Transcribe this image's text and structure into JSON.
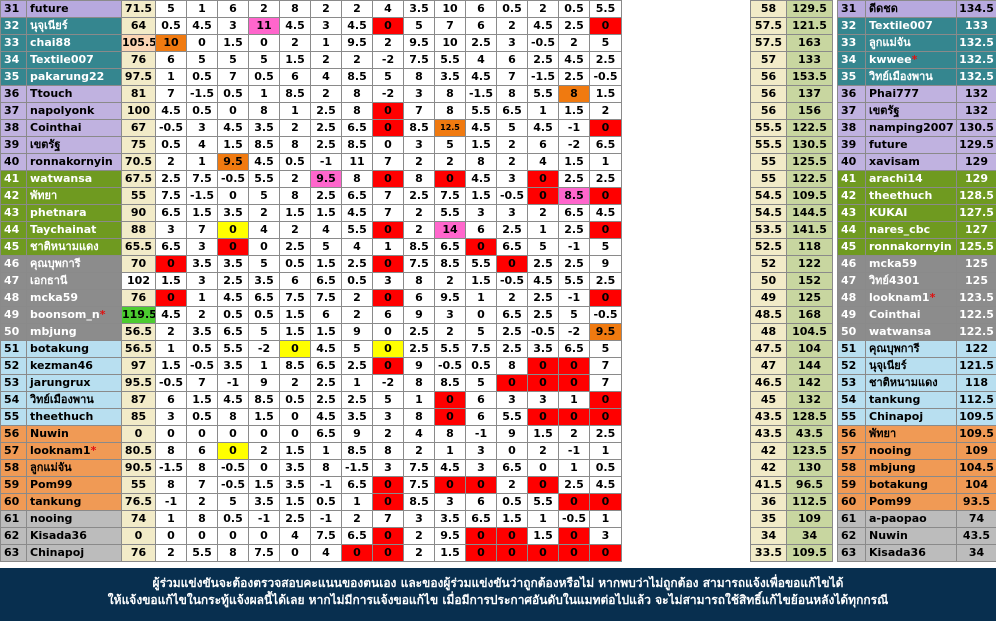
{
  "colors": {
    "purple": "#b7a9de",
    "teal": "#35868f",
    "lilac": "#c0b2e0",
    "green": "#6f9a20",
    "gray": "#8c8c8c",
    "lightblue": "#b8dff0",
    "orange": "#f09a55",
    "silver": "#bcbcbc",
    "cell_red": "#ff0000",
    "cell_yellow": "#ffff00",
    "cell_pink": "#ff66cc",
    "cell_orange": "#f07a10",
    "cell_green": "#4ccc30",
    "mid_bg": "#f2ebc8",
    "mid_pts": "#c8d6a0",
    "footer_bg": "#082f4f"
  },
  "rows": [
    {
      "rank": "31",
      "name": "future",
      "total": "71.5",
      "weeks": [
        "5",
        "1",
        "6",
        "2",
        "8",
        "2",
        "2",
        "4",
        "3.5",
        "10",
        "6",
        "0.5",
        "2",
        "0.5",
        "5.5"
      ],
      "color": "purple",
      "hl": {}
    },
    {
      "rank": "32",
      "name": "นุจุเนียร์",
      "total": "64",
      "weeks": [
        "0.5",
        "4.5",
        "3",
        "11",
        "4.5",
        "3",
        "4.5",
        "0",
        "5",
        "7",
        "6",
        "2",
        "4.5",
        "2.5",
        "0"
      ],
      "color": "teal",
      "hl": {
        "3": "cell_pink",
        "7": "cell_red",
        "14": "cell_red"
      }
    },
    {
      "rank": "33",
      "name": "chai88",
      "total": "105.5",
      "weeks": [
        "10",
        "0",
        "1.5",
        "0",
        "2",
        "1",
        "9.5",
        "2",
        "9.5",
        "10",
        "2.5",
        "3",
        "-0.5",
        "2",
        "5"
      ],
      "color": "teal",
      "hl": {
        "0": "cell_orange"
      },
      "tot_hl": "#fcd5b4"
    },
    {
      "rank": "34",
      "name": "Textile007",
      "total": "76",
      "weeks": [
        "6",
        "5",
        "5",
        "5",
        "1.5",
        "2",
        "2",
        "-2",
        "7.5",
        "5.5",
        "4",
        "6",
        "2.5",
        "4.5",
        "2.5"
      ],
      "color": "teal",
      "hl": {}
    },
    {
      "rank": "35",
      "name": "pakarung22",
      "total": "97.5",
      "weeks": [
        "1",
        "0.5",
        "7",
        "0.5",
        "6",
        "4",
        "8.5",
        "5",
        "8",
        "3.5",
        "4.5",
        "7",
        "-1.5",
        "2.5",
        "-0.5"
      ],
      "color": "teal",
      "hl": {}
    },
    {
      "rank": "36",
      "name": "Ttouch",
      "total": "81",
      "weeks": [
        "7",
        "-1.5",
        "0.5",
        "1",
        "8.5",
        "2",
        "8",
        "-2",
        "3",
        "8",
        "-1.5",
        "8",
        "5.5",
        "8",
        "1.5"
      ],
      "color": "lilac",
      "hl": {
        "13": "cell_orange"
      }
    },
    {
      "rank": "37",
      "name": "napolyonk",
      "total": "100",
      "weeks": [
        "4.5",
        "0.5",
        "0",
        "8",
        "1",
        "2.5",
        "8",
        "0",
        "7",
        "8",
        "5.5",
        "6.5",
        "1",
        "1.5",
        "2"
      ],
      "color": "lilac",
      "hl": {
        "7": "cell_red"
      }
    },
    {
      "rank": "38",
      "name": "Cointhai",
      "total": "67",
      "weeks": [
        "-0.5",
        "3",
        "4.5",
        "3.5",
        "2",
        "2.5",
        "6.5",
        "0",
        "8.5",
        "12.5",
        "4.5",
        "5",
        "4.5",
        "-1",
        "0"
      ],
      "color": "lilac",
      "hl": {
        "7": "cell_red",
        "9": "cell_orange",
        "14": "cell_red"
      }
    },
    {
      "rank": "39",
      "name": "เขตรัฐ",
      "total": "75",
      "weeks": [
        "0.5",
        "4",
        "1.5",
        "8.5",
        "8",
        "2.5",
        "8.5",
        "0",
        "3",
        "5",
        "1.5",
        "2",
        "6",
        "-2",
        "6.5"
      ],
      "color": "lilac",
      "hl": {}
    },
    {
      "rank": "40",
      "name": "ronnakornyin",
      "total": "70.5",
      "weeks": [
        "2",
        "1",
        "9.5",
        "4.5",
        "0.5",
        "-1",
        "11",
        "7",
        "2",
        "2",
        "8",
        "2",
        "4",
        "1.5",
        "1"
      ],
      "color": "lilac",
      "hl": {
        "2": "cell_orange"
      }
    },
    {
      "rank": "41",
      "name": "watwansa",
      "total": "67.5",
      "weeks": [
        "2.5",
        "7.5",
        "-0.5",
        "5.5",
        "2",
        "9.5",
        "8",
        "0",
        "8",
        "0",
        "4.5",
        "3",
        "0",
        "2.5",
        "2.5"
      ],
      "color": "green",
      "hl": {
        "5": "cell_pink",
        "7": "cell_red",
        "9": "cell_red",
        "12": "cell_red"
      }
    },
    {
      "rank": "42",
      "name": "พัทยา",
      "total": "55",
      "weeks": [
        "7.5",
        "-1.5",
        "0",
        "5",
        "8",
        "2.5",
        "6.5",
        "7",
        "2.5",
        "7.5",
        "1.5",
        "-0.5",
        "0",
        "8.5",
        "0"
      ],
      "color": "green",
      "hl": {
        "12": "cell_red",
        "13": "cell_pink",
        "14": "cell_red"
      }
    },
    {
      "rank": "43",
      "name": "phetnara",
      "total": "90",
      "weeks": [
        "6.5",
        "1.5",
        "3.5",
        "2",
        "1.5",
        "1.5",
        "4.5",
        "7",
        "2",
        "5.5",
        "3",
        "3",
        "2",
        "6.5",
        "4.5"
      ],
      "color": "green",
      "hl": {}
    },
    {
      "rank": "44",
      "name": "Taychainat",
      "total": "88",
      "weeks": [
        "3",
        "7",
        "0",
        "4",
        "2",
        "4",
        "5.5",
        "0",
        "2",
        "14",
        "6",
        "2.5",
        "1",
        "2.5",
        "0"
      ],
      "color": "green",
      "hl": {
        "2": "cell_yellow",
        "7": "cell_red",
        "9": "cell_pink",
        "14": "cell_red"
      }
    },
    {
      "rank": "45",
      "name": "ชาติหนามแดง",
      "total": "65.5",
      "weeks": [
        "6.5",
        "3",
        "0",
        "0",
        "2.5",
        "5",
        "4",
        "1",
        "8.5",
        "6.5",
        "0",
        "6.5",
        "5",
        "-1",
        "5"
      ],
      "color": "green",
      "hl": {
        "2": "cell_red",
        "10": "cell_red"
      }
    },
    {
      "rank": "46",
      "name": "คุณบุพการี",
      "total": "70",
      "weeks": [
        "0",
        "3.5",
        "3.5",
        "5",
        "0.5",
        "1.5",
        "2.5",
        "0",
        "7.5",
        "8.5",
        "5.5",
        "0",
        "2.5",
        "2.5",
        "9"
      ],
      "color": "gray",
      "hl": {
        "0": "cell_red",
        "7": "cell_red",
        "11": "cell_red"
      }
    },
    {
      "rank": "47",
      "name": "เอกธานี",
      "total": "102",
      "weeks": [
        "1.5",
        "3",
        "2.5",
        "3.5",
        "6",
        "6.5",
        "0.5",
        "3",
        "8",
        "2",
        "1.5",
        "-0.5",
        "4.5",
        "5.5",
        "2.5"
      ],
      "color": "gray",
      "hl": {},
      "tot_hl": "#ffffff"
    },
    {
      "rank": "48",
      "name": "mcka59",
      "total": "76",
      "weeks": [
        "0",
        "1",
        "4.5",
        "6.5",
        "7.5",
        "7.5",
        "2",
        "0",
        "6",
        "9.5",
        "1",
        "2",
        "2.5",
        "-1",
        "0"
      ],
      "color": "gray",
      "hl": {
        "0": "cell_red",
        "7": "cell_red",
        "14": "cell_red"
      }
    },
    {
      "rank": "49",
      "name": "boonsom_n",
      "ast": true,
      "total": "119.5",
      "weeks": [
        "4.5",
        "2",
        "0.5",
        "0.5",
        "1.5",
        "6",
        "2",
        "6",
        "9",
        "3",
        "0",
        "6.5",
        "2.5",
        "5",
        "-0.5"
      ],
      "color": "gray",
      "hl": {},
      "tot_hl": "#4ccc30"
    },
    {
      "rank": "50",
      "name": "mbjung",
      "total": "56.5",
      "weeks": [
        "2",
        "3.5",
        "6.5",
        "5",
        "1.5",
        "1.5",
        "9",
        "0",
        "2.5",
        "2",
        "5",
        "2.5",
        "-0.5",
        "-2",
        "9.5"
      ],
      "color": "gray",
      "hl": {
        "14": "cell_orange"
      }
    },
    {
      "rank": "51",
      "name": "botakung",
      "total": "56.5",
      "weeks": [
        "1",
        "0.5",
        "5.5",
        "-2",
        "0",
        "4.5",
        "5",
        "0",
        "2.5",
        "5.5",
        "7.5",
        "2.5",
        "3.5",
        "6.5",
        "5"
      ],
      "color": "lightblue",
      "hl": {
        "4": "cell_yellow",
        "7": "cell_yellow"
      }
    },
    {
      "rank": "52",
      "name": "kezman46",
      "total": "97",
      "weeks": [
        "1.5",
        "-0.5",
        "3.5",
        "1",
        "8.5",
        "6.5",
        "2.5",
        "0",
        "9",
        "-0.5",
        "0.5",
        "8",
        "0",
        "0",
        "7"
      ],
      "color": "lightblue",
      "hl": {
        "7": "cell_red",
        "12": "cell_red",
        "13": "cell_red"
      }
    },
    {
      "rank": "53",
      "name": "jarungrux",
      "total": "95.5",
      "weeks": [
        "-0.5",
        "7",
        "-1",
        "9",
        "2",
        "2.5",
        "1",
        "-2",
        "8",
        "8.5",
        "5",
        "0",
        "0",
        "0",
        "7"
      ],
      "color": "lightblue",
      "hl": {
        "11": "cell_red",
        "12": "cell_red",
        "13": "cell_red"
      }
    },
    {
      "rank": "54",
      "name": "วิทย์เมืองพาน",
      "total": "87",
      "weeks": [
        "6",
        "1.5",
        "4.5",
        "8.5",
        "0.5",
        "2.5",
        "2.5",
        "5",
        "1",
        "0",
        "6",
        "3",
        "3",
        "1",
        "0"
      ],
      "color": "lightblue",
      "hl": {
        "9": "cell_red",
        "14": "cell_red"
      }
    },
    {
      "rank": "55",
      "name": "theethuch",
      "total": "85",
      "weeks": [
        "3",
        "0.5",
        "8",
        "1.5",
        "0",
        "4.5",
        "3.5",
        "3",
        "8",
        "0",
        "6",
        "5.5",
        "0",
        "0",
        "0"
      ],
      "color": "lightblue",
      "hl": {
        "9": "cell_red",
        "12": "cell_red",
        "13": "cell_red",
        "14": "cell_red"
      }
    },
    {
      "rank": "56",
      "name": "Nuwin",
      "total": "0",
      "weeks": [
        "0",
        "0",
        "0",
        "0",
        "0",
        "6.5",
        "9",
        "2",
        "4",
        "8",
        "-1",
        "9",
        "1.5",
        "2",
        "2.5"
      ],
      "color": "orange",
      "hl": {}
    },
    {
      "rank": "57",
      "name": "looknam1",
      "ast": true,
      "total": "80.5",
      "weeks": [
        "8",
        "6",
        "0",
        "2",
        "1.5",
        "1",
        "8.5",
        "8",
        "2",
        "1",
        "3",
        "0",
        "2",
        "-1",
        "1"
      ],
      "color": "orange",
      "hl": {
        "2": "cell_yellow"
      }
    },
    {
      "rank": "58",
      "name": "ลูกแม่จัน",
      "total": "90.5",
      "weeks": [
        "-1.5",
        "8",
        "-0.5",
        "0",
        "3.5",
        "8",
        "-1.5",
        "3",
        "7.5",
        "4.5",
        "3",
        "6.5",
        "0",
        "1",
        "0.5"
      ],
      "color": "orange",
      "hl": {}
    },
    {
      "rank": "59",
      "name": "Pom99",
      "total": "55",
      "weeks": [
        "8",
        "7",
        "-0.5",
        "1.5",
        "3.5",
        "-1",
        "6.5",
        "0",
        "7.5",
        "0",
        "0",
        "2",
        "0",
        "2.5",
        "4.5"
      ],
      "color": "orange",
      "hl": {
        "7": "cell_red",
        "9": "cell_red",
        "10": "cell_red",
        "12": "cell_red"
      }
    },
    {
      "rank": "60",
      "name": "tankung",
      "total": "76.5",
      "weeks": [
        "-1",
        "2",
        "5",
        "3.5",
        "1.5",
        "0.5",
        "1",
        "0",
        "8.5",
        "3",
        "6",
        "0.5",
        "5.5",
        "0",
        "0"
      ],
      "color": "orange",
      "hl": {
        "7": "cell_red",
        "13": "cell_red",
        "14": "cell_red"
      }
    },
    {
      "rank": "61",
      "name": "nooing",
      "total": "74",
      "weeks": [
        "1",
        "8",
        "0.5",
        "-1",
        "2.5",
        "-1",
        "2",
        "7",
        "3",
        "3.5",
        "6.5",
        "1.5",
        "1",
        "-0.5",
        "1"
      ],
      "color": "silver",
      "hl": {}
    },
    {
      "rank": "62",
      "name": "Kisada36",
      "total": "0",
      "weeks": [
        "0",
        "0",
        "0",
        "0",
        "4",
        "7.5",
        "6.5",
        "0",
        "2",
        "9.5",
        "0",
        "0",
        "1.5",
        "0",
        "3"
      ],
      "color": "silver",
      "hl": {
        "7": "cell_red",
        "10": "cell_red",
        "11": "cell_red",
        "13": "cell_red"
      }
    },
    {
      "rank": "63",
      "name": "Chinapoj",
      "total": "76",
      "weeks": [
        "2",
        "5.5",
        "8",
        "7.5",
        "0",
        "4",
        "0",
        "0",
        "2",
        "1.5",
        "0",
        "0",
        "0",
        "0",
        "0"
      ],
      "color": "silver",
      "hl": {
        "6": "cell_red",
        "7": "cell_red",
        "10": "cell_red",
        "11": "cell_red",
        "12": "cell_red",
        "13": "cell_red",
        "14": "cell_red"
      }
    }
  ],
  "mid": [
    {
      "week": "58",
      "pts": "129.5"
    },
    {
      "week": "57.5",
      "pts": "121.5"
    },
    {
      "week": "57.5",
      "pts": "163"
    },
    {
      "week": "57",
      "pts": "133"
    },
    {
      "week": "56",
      "pts": "153.5"
    },
    {
      "week": "56",
      "pts": "137"
    },
    {
      "week": "56",
      "pts": "156"
    },
    {
      "week": "55.5",
      "pts": "122.5"
    },
    {
      "week": "55.5",
      "pts": "130.5"
    },
    {
      "week": "55",
      "pts": "125.5"
    },
    {
      "week": "55",
      "pts": "122.5"
    },
    {
      "week": "54.5",
      "pts": "109.5"
    },
    {
      "week": "54.5",
      "pts": "144.5"
    },
    {
      "week": "53.5",
      "pts": "141.5"
    },
    {
      "week": "52.5",
      "pts": "118"
    },
    {
      "week": "52",
      "pts": "122"
    },
    {
      "week": "50",
      "pts": "152"
    },
    {
      "week": "49",
      "pts": "125"
    },
    {
      "week": "48.5",
      "pts": "168"
    },
    {
      "week": "48",
      "pts": "104.5"
    },
    {
      "week": "47.5",
      "pts": "104"
    },
    {
      "week": "47",
      "pts": "144"
    },
    {
      "week": "46.5",
      "pts": "142"
    },
    {
      "week": "45",
      "pts": "132"
    },
    {
      "week": "43.5",
      "pts": "128.5"
    },
    {
      "week": "43.5",
      "pts": "43.5"
    },
    {
      "week": "42",
      "pts": "123.5"
    },
    {
      "week": "42",
      "pts": "130"
    },
    {
      "week": "41.5",
      "pts": "96.5"
    },
    {
      "week": "36",
      "pts": "112.5"
    },
    {
      "week": "35",
      "pts": "109"
    },
    {
      "week": "34",
      "pts": "34"
    },
    {
      "week": "33.5",
      "pts": "109.5"
    }
  ],
  "right": [
    {
      "rank": "31",
      "name": "ดีดชด",
      "score": "134.5",
      "color": "purple"
    },
    {
      "rank": "32",
      "name": "Textile007",
      "score": "133",
      "color": "teal"
    },
    {
      "rank": "33",
      "name": "ลูกแม่จัน",
      "score": "132.5",
      "color": "teal"
    },
    {
      "rank": "34",
      "name": "kwwee",
      "ast": true,
      "score": "132.5",
      "color": "teal"
    },
    {
      "rank": "35",
      "name": "วิทย์เมืองพาน",
      "score": "132.5",
      "color": "teal"
    },
    {
      "rank": "36",
      "name": "Phai777",
      "score": "132",
      "color": "lilac"
    },
    {
      "rank": "37",
      "name": "เขตรัฐ",
      "score": "132",
      "color": "lilac"
    },
    {
      "rank": "38",
      "name": "namping2007",
      "score": "130.5",
      "color": "lilac"
    },
    {
      "rank": "39",
      "name": "future",
      "score": "129.5",
      "color": "lilac"
    },
    {
      "rank": "40",
      "name": "xavisam",
      "score": "129",
      "color": "lilac"
    },
    {
      "rank": "41",
      "name": "arachi14",
      "score": "129",
      "color": "green"
    },
    {
      "rank": "42",
      "name": "theethuch",
      "score": "128.5",
      "color": "green"
    },
    {
      "rank": "43",
      "name": "KUKAI",
      "score": "127.5",
      "color": "green"
    },
    {
      "rank": "44",
      "name": "nares_cbc",
      "score": "127",
      "color": "green"
    },
    {
      "rank": "45",
      "name": "ronnakornyin",
      "score": "125.5",
      "color": "green"
    },
    {
      "rank": "46",
      "name": "mcka59",
      "score": "125",
      "color": "gray"
    },
    {
      "rank": "47",
      "name": "วิทย์4301",
      "score": "125",
      "color": "gray"
    },
    {
      "rank": "48",
      "name": "looknam1",
      "ast": true,
      "score": "123.5",
      "color": "gray"
    },
    {
      "rank": "49",
      "name": "Cointhai",
      "score": "122.5",
      "color": "gray"
    },
    {
      "rank": "50",
      "name": "watwansa",
      "score": "122.5",
      "color": "gray"
    },
    {
      "rank": "51",
      "name": "คุณบุพการี",
      "score": "122",
      "color": "lightblue"
    },
    {
      "rank": "52",
      "name": "นุจุเนียร์",
      "score": "121.5",
      "color": "lightblue"
    },
    {
      "rank": "53",
      "name": "ชาติหนามแดง",
      "score": "118",
      "color": "lightblue"
    },
    {
      "rank": "54",
      "name": "tankung",
      "score": "112.5",
      "color": "lightblue"
    },
    {
      "rank": "55",
      "name": "Chinapoj",
      "score": "109.5",
      "color": "lightblue"
    },
    {
      "rank": "56",
      "name": "พัทยา",
      "score": "109.5",
      "color": "orange"
    },
    {
      "rank": "57",
      "name": "nooing",
      "score": "109",
      "color": "orange"
    },
    {
      "rank": "58",
      "name": "mbjung",
      "score": "104.5",
      "color": "orange"
    },
    {
      "rank": "59",
      "name": "botakung",
      "score": "104",
      "color": "orange"
    },
    {
      "rank": "60",
      "name": "Pom99",
      "score": "93.5",
      "color": "orange"
    },
    {
      "rank": "61",
      "name": "a-paopao",
      "score": "74",
      "color": "silver"
    },
    {
      "rank": "62",
      "name": "Nuwin",
      "score": "43.5",
      "color": "silver"
    },
    {
      "rank": "63",
      "name": "Kisada36",
      "score": "34",
      "color": "silver"
    }
  ],
  "footer": {
    "line1": "ผู้ร่วมแข่งขันจะต้องตรวจสอบคะแนนของตนเอง และของผู้ร่วมแข่งขันว่าถูกต้องหรือไม่ หากพบว่าไม่ถูกต้อง สามารถแจ้งเพื่อขอแก้ไขได้",
    "line2": "ให้แจ้งขอแก้ไขในกระทู้แจ้งผลนี้ได้เลย  หากไม่มีการแจ้งขอแก้ไข เมื่อมีการประกาศอันดับในแมทต่อไปแล้ว จะไม่สามารถใช้สิทธิ์แก้ไขย้อนหลังได้ทุกกรณี"
  }
}
